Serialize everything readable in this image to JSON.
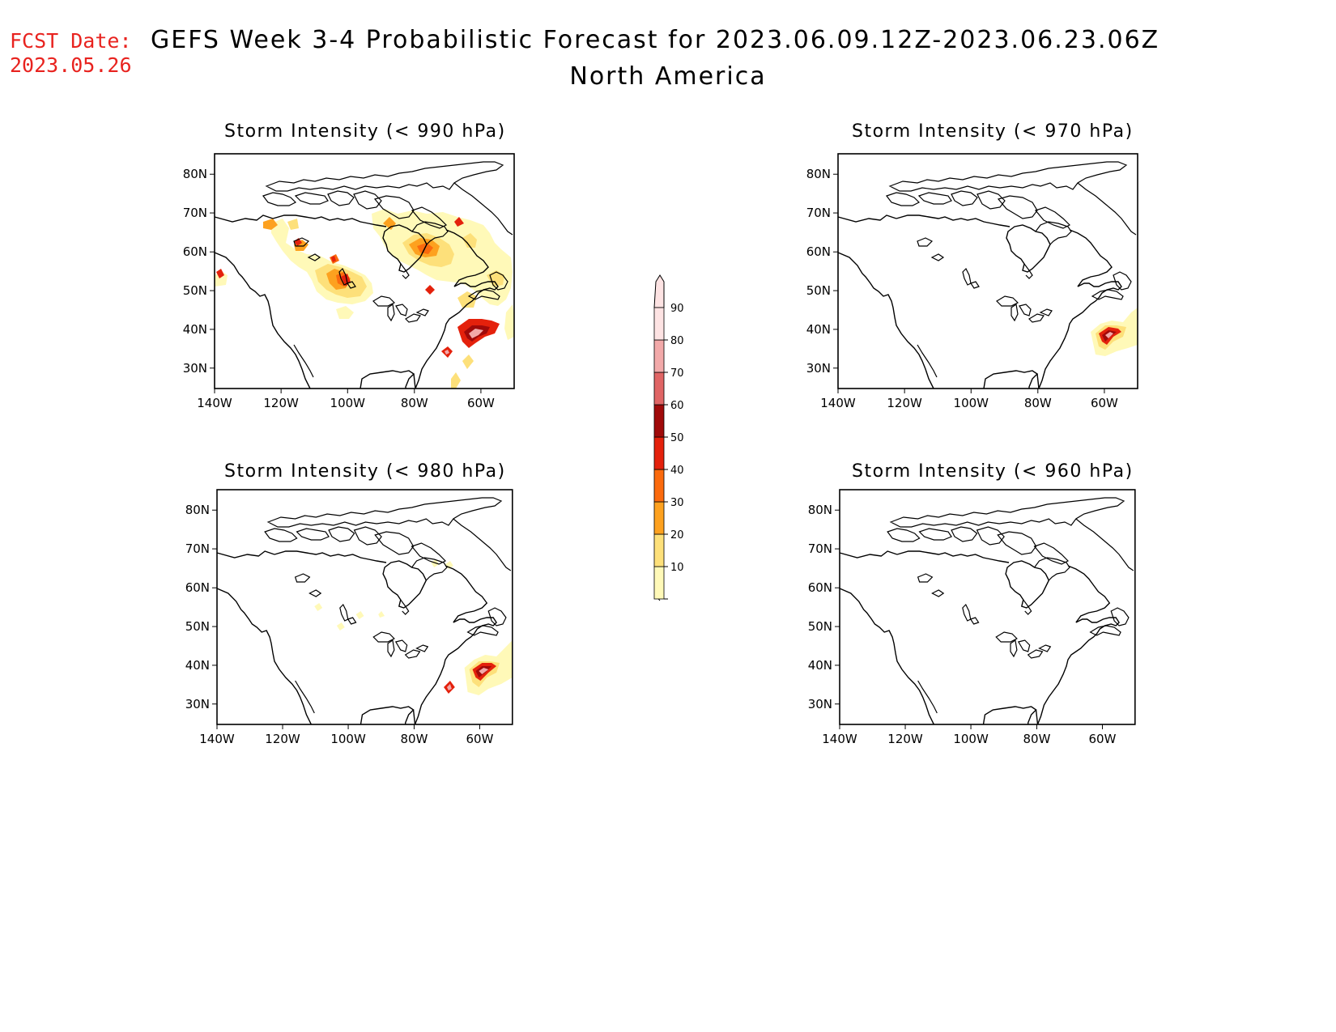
{
  "fcst_date": {
    "label": "FCST Date:",
    "value": "2023.05.26"
  },
  "title": {
    "line1": "GEFS Week 3-4 Probabilistic Forecast for 2023.06.09.12Z-2023.06.23.06Z",
    "line2": "North America"
  },
  "panels": [
    {
      "title": "Storm Intensity (< 990 hPa)",
      "position": "top-left"
    },
    {
      "title": "Storm Intensity (< 970 hPa)",
      "position": "top-right"
    },
    {
      "title": "Storm Intensity (< 980 hPa)",
      "position": "bottom-left"
    },
    {
      "title": "Storm Intensity (< 960 hPa)",
      "position": "bottom-right"
    }
  ],
  "axes": {
    "lon_ticks": [
      "140W",
      "120W",
      "100W",
      "80W",
      "60W"
    ],
    "lat_ticks": [
      "80N",
      "70N",
      "60N",
      "50N",
      "40N",
      "30N"
    ]
  },
  "colorbar": {
    "levels": [
      "10",
      "20",
      "30",
      "40",
      "50",
      "60",
      "70",
      "80",
      "90"
    ],
    "colors": [
      "#fff9b8",
      "#fde07a",
      "#fda11f",
      "#fb6a0d",
      "#e4210c",
      "#a00a0a",
      "#e06565",
      "#f2a9a9",
      "#fde3e3"
    ]
  },
  "colors": {
    "fcst_text": "#e8231f",
    "border": "#000000"
  }
}
